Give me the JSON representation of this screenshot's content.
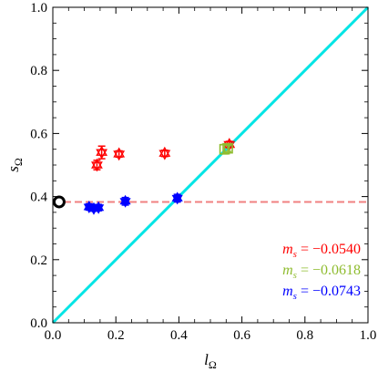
{
  "chart_data": {
    "type": "scatter",
    "xlabel": {
      "base": "l",
      "sub": "Ω"
    },
    "ylabel": {
      "base": "s",
      "sub": "Ω"
    },
    "xlim": [
      0.0,
      1.0
    ],
    "ylim": [
      0.0,
      1.0
    ],
    "xticks": [
      "0.0",
      "0.2",
      "0.4",
      "0.6",
      "0.8",
      "1.0"
    ],
    "yticks": [
      "0.0",
      "0.2",
      "0.4",
      "0.6",
      "0.8",
      "1.0"
    ],
    "grid": false,
    "legend_position": "bottom-right",
    "series": [
      {
        "name": "m_s = −0.0540",
        "legend_var": "m",
        "legend_sub": "s",
        "legend_value": " = −0.0540",
        "color": "#ff0000",
        "marker": "hexagram",
        "points": [
          {
            "x": 0.14,
            "y": 0.5,
            "yerr": 0.015
          },
          {
            "x": 0.155,
            "y": 0.54,
            "yerr": 0.02
          },
          {
            "x": 0.21,
            "y": 0.535,
            "yerr": 0.01
          },
          {
            "x": 0.355,
            "y": 0.537,
            "yerr": 0.01
          },
          {
            "x": 0.56,
            "y": 0.565,
            "yerr": 0.01
          }
        ]
      },
      {
        "name": "m_s = −0.0618",
        "legend_var": "m",
        "legend_sub": "s",
        "legend_value": " = −0.0618",
        "color": "#8fbc2f",
        "marker": "square",
        "points": [
          {
            "x": 0.545,
            "y": 0.55,
            "yerr": 0.015
          },
          {
            "x": 0.555,
            "y": 0.553,
            "yerr": 0.01
          }
        ]
      },
      {
        "name": "m_s = −0.0743",
        "legend_var": "m",
        "legend_sub": "s",
        "legend_value": " = −0.0743",
        "color": "#0000ff",
        "marker": "star-triangle",
        "points": [
          {
            "x": 0.115,
            "y": 0.367,
            "yerr": 0.01
          },
          {
            "x": 0.13,
            "y": 0.362,
            "yerr": 0.008
          },
          {
            "x": 0.145,
            "y": 0.365,
            "yerr": 0.01
          },
          {
            "x": 0.23,
            "y": 0.385,
            "yerr": 0.012
          },
          {
            "x": 0.395,
            "y": 0.395,
            "yerr": 0.012
          }
        ]
      }
    ],
    "reference_point": {
      "x": 0.02,
      "y": 0.383,
      "color": "#000000"
    },
    "hline": {
      "y": 0.383,
      "color": "#f08080",
      "style": "dashed"
    },
    "diagonal": {
      "from": [
        0.0,
        0.0
      ],
      "to": [
        1.0,
        1.0
      ],
      "color": "#00e5e5"
    }
  }
}
